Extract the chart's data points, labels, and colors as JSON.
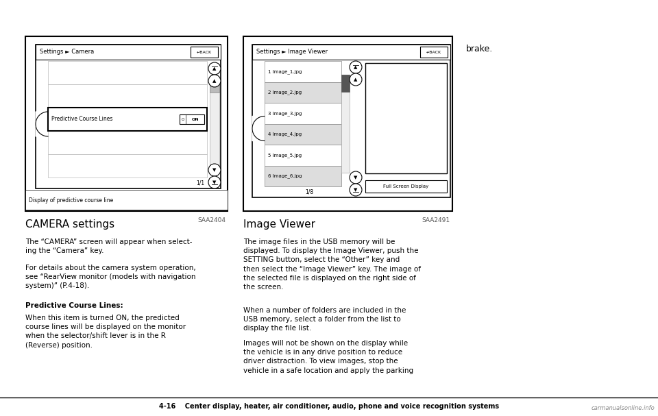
{
  "bg_color": "#ffffff",
  "page_bottom_text": "4-16    Center display, heater, air conditioner, audio, phone and voice recognition systems",
  "watermark": "carmanualsonline.info",
  "brake_text": "brake.",
  "left_screen_title": "Settings ► Camera",
  "left_screen_items": [
    "",
    "",
    "Predictive Course Lines",
    "",
    ""
  ],
  "left_on_button": "O  ON",
  "left_page_indicator": "1/1",
  "left_caption": "Display of predictive course line",
  "left_label": "SAA2404",
  "right_screen_title": "Settings ► Image Viewer",
  "right_screen_items": [
    "1 Image_1.jpg",
    "2 Image_2.jpg",
    "3 Image_3.jpg",
    "4 Image_4.jpg",
    "5 Image_5.jpg",
    "6 Image_6.jpg"
  ],
  "right_page_indicator": "1/8",
  "right_full_screen_btn": "Full Screen Display",
  "right_label": "SAA2491",
  "section1_title": "CAMERA settings",
  "section1_para1": "The “CAMERA” screen will appear when select-\ning the “Camera” key.",
  "section1_para2": "For details about the camera system operation,\nsee “RearView monitor (models with navigation\nsystem)” (P.4-18).",
  "section1_bold": "Predictive Course Lines:",
  "section1_bold_para": "When this item is turned ON, the predicted\ncourse lines will be displayed on the monitor\nwhen the selector/shift lever is in the R\n(Reverse) position.",
  "section2_title": "Image Viewer",
  "section2_para1": "The image files in the USB memory will be\ndisplayed. To display the Image Viewer, push the\nSETTING button, select the “Other” key and\nthen select the “Image Viewer” key. The image of\nthe selected file is displayed on the right side of\nthe screen.",
  "section2_para2": "When a number of folders are included in the\nUSB memory, select a folder from the list to\ndisplay the file list.",
  "section2_para3": "Images will not be shown on the display while\nthe vehicle is in any drive position to reduce\ndriver distraction. To view images, stop the\nvehicle in a safe location and apply the parking"
}
